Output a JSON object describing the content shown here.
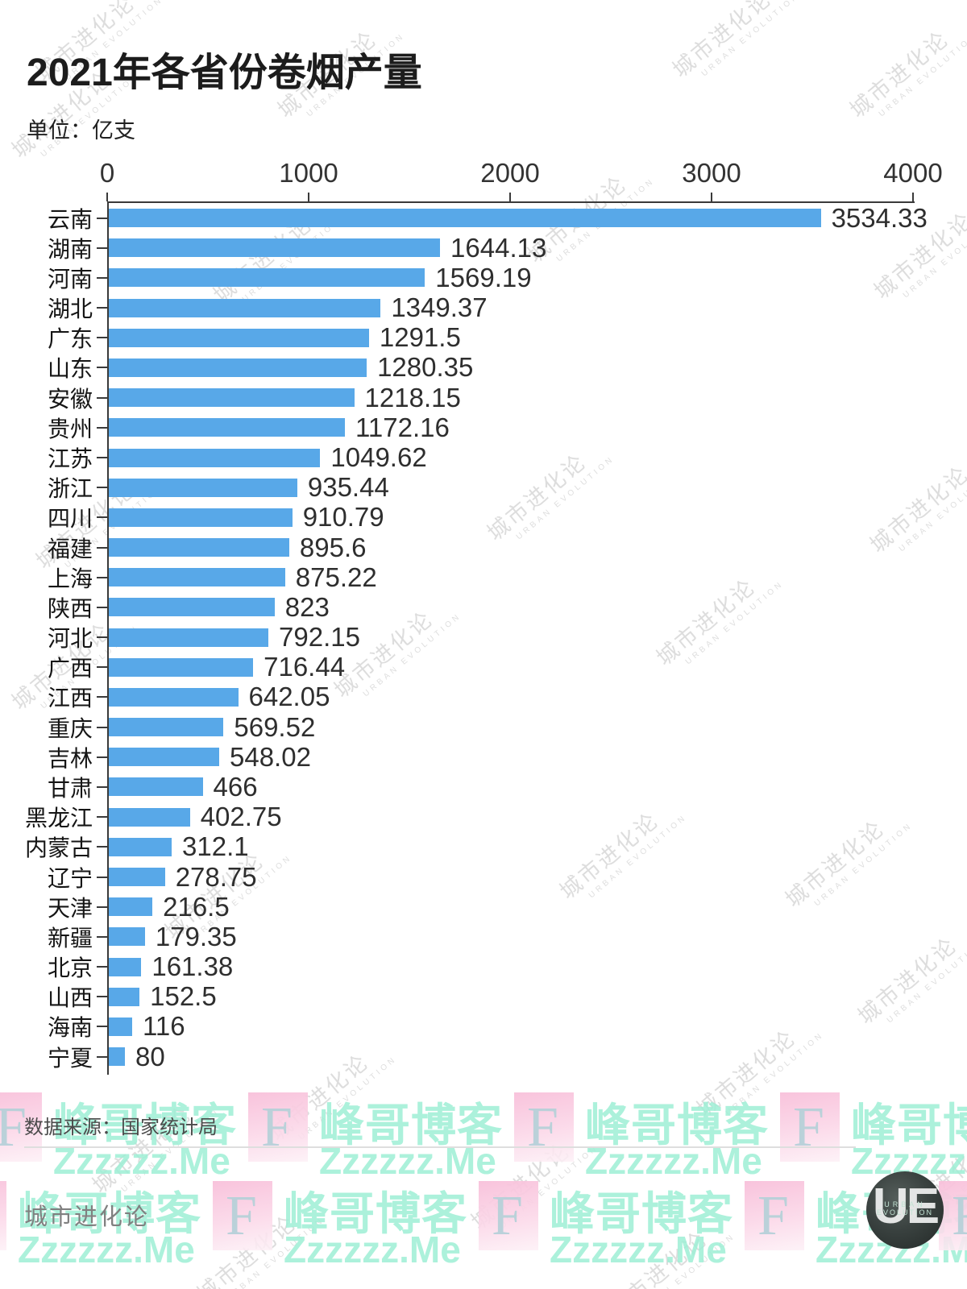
{
  "page": {
    "title": "2021年各省份卷烟产量",
    "unit_label": "单位：亿支",
    "source_label": "数据来源：国家统计局",
    "footer_brand": "城市进化论",
    "colors": {
      "bar_blue": "#58a8e8",
      "watermark_pink": "#f8c0da",
      "watermark_teal": "#9eeed5",
      "axis": "#3a3a3a"
    }
  },
  "chart_data": {
    "type": "bar",
    "orientation": "horizontal",
    "title": "2021年各省份卷烟产量",
    "unit": "亿支",
    "source": "国家统计局",
    "xlim": [
      0,
      4000
    ],
    "x_ticks": [
      0,
      1000,
      2000,
      3000,
      4000
    ],
    "grid": false,
    "categories": [
      "云南",
      "湖南",
      "河南",
      "湖北",
      "广东",
      "山东",
      "安徽",
      "贵州",
      "江苏",
      "浙江",
      "四川",
      "福建",
      "上海",
      "陕西",
      "河北",
      "广西",
      "江西",
      "重庆",
      "吉林",
      "甘肃",
      "黑龙江",
      "内蒙古",
      "辽宁",
      "天津",
      "新疆",
      "北京",
      "山西",
      "海南",
      "宁夏"
    ],
    "values": [
      3534.33,
      1644.13,
      1569.19,
      1349.37,
      1291.5,
      1280.35,
      1218.15,
      1172.16,
      1049.62,
      935.44,
      910.79,
      895.6,
      875.22,
      823,
      792.15,
      716.44,
      642.05,
      569.52,
      548.02,
      466,
      402.75,
      312.1,
      278.75,
      216.5,
      179.35,
      161.38,
      152.5,
      116,
      80
    ]
  },
  "watermarks": {
    "diagonal_text": "城市进化论",
    "diagonal_subtext": "URBAN EVOLUTION",
    "band_letter": "F",
    "band_text": "峰哥博客",
    "band_subtext": "Zzzzzz.Me",
    "logo_letters": "UE",
    "logo_word1": "URBAN",
    "logo_word2": "EVOLUTION"
  }
}
